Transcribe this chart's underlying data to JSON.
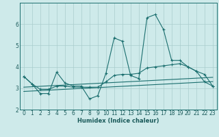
{
  "xlabel": "Humidex (Indice chaleur)",
  "bg_color": "#ceeaea",
  "grid_color": "#aacccc",
  "line_color": "#1a6e6e",
  "xlim": [
    -0.5,
    23.5
  ],
  "ylim": [
    2,
    7
  ],
  "yticks": [
    2,
    3,
    4,
    5,
    6
  ],
  "xticks": [
    0,
    1,
    2,
    3,
    4,
    5,
    6,
    7,
    8,
    9,
    10,
    11,
    12,
    13,
    14,
    15,
    16,
    17,
    18,
    19,
    20,
    21,
    22,
    23
  ],
  "s1_x": [
    0,
    1,
    2,
    3,
    4,
    5,
    6,
    7,
    8,
    9,
    10,
    11,
    12,
    13,
    14,
    15,
    16,
    17,
    18,
    19,
    20,
    21,
    22,
    23
  ],
  "s1_y": [
    3.55,
    3.2,
    2.75,
    2.75,
    3.75,
    3.25,
    3.1,
    3.1,
    2.5,
    2.65,
    3.7,
    5.35,
    5.2,
    3.6,
    3.45,
    6.3,
    6.45,
    5.75,
    4.3,
    4.3,
    4.0,
    3.8,
    3.65,
    3.1
  ],
  "s2_x": [
    0,
    1,
    2,
    3,
    4,
    5,
    6,
    7,
    8,
    9,
    10,
    11,
    12,
    13,
    14,
    15,
    16,
    17,
    18,
    19,
    20,
    21,
    22,
    23
  ],
  "s2_y": [
    3.05,
    3.07,
    3.09,
    3.11,
    3.13,
    3.15,
    3.17,
    3.19,
    3.21,
    3.23,
    3.25,
    3.27,
    3.29,
    3.31,
    3.33,
    3.35,
    3.37,
    3.39,
    3.41,
    3.43,
    3.45,
    3.47,
    3.49,
    3.51
  ],
  "s3_x": [
    0,
    1,
    2,
    3,
    4,
    5,
    6,
    7,
    8,
    9,
    10,
    11,
    12,
    13,
    14,
    15,
    16,
    17,
    18,
    19,
    20,
    21,
    22,
    23
  ],
  "s3_y": [
    2.85,
    2.87,
    2.89,
    2.91,
    2.93,
    2.95,
    2.97,
    2.99,
    3.01,
    3.03,
    3.05,
    3.07,
    3.09,
    3.11,
    3.13,
    3.15,
    3.17,
    3.19,
    3.21,
    3.23,
    3.25,
    3.27,
    3.29,
    3.31
  ],
  "s4_x": [
    0,
    1,
    2,
    3,
    4,
    5,
    6,
    7,
    8,
    9,
    10,
    11,
    12,
    13,
    14,
    15,
    16,
    17,
    18,
    19,
    20,
    21,
    22,
    23
  ],
  "s4_y": [
    3.55,
    3.2,
    2.95,
    2.95,
    3.1,
    3.1,
    3.05,
    3.05,
    3.05,
    3.05,
    3.3,
    3.6,
    3.65,
    3.65,
    3.7,
    3.95,
    4.0,
    4.05,
    4.1,
    4.15,
    4.0,
    3.8,
    3.3,
    3.1
  ]
}
